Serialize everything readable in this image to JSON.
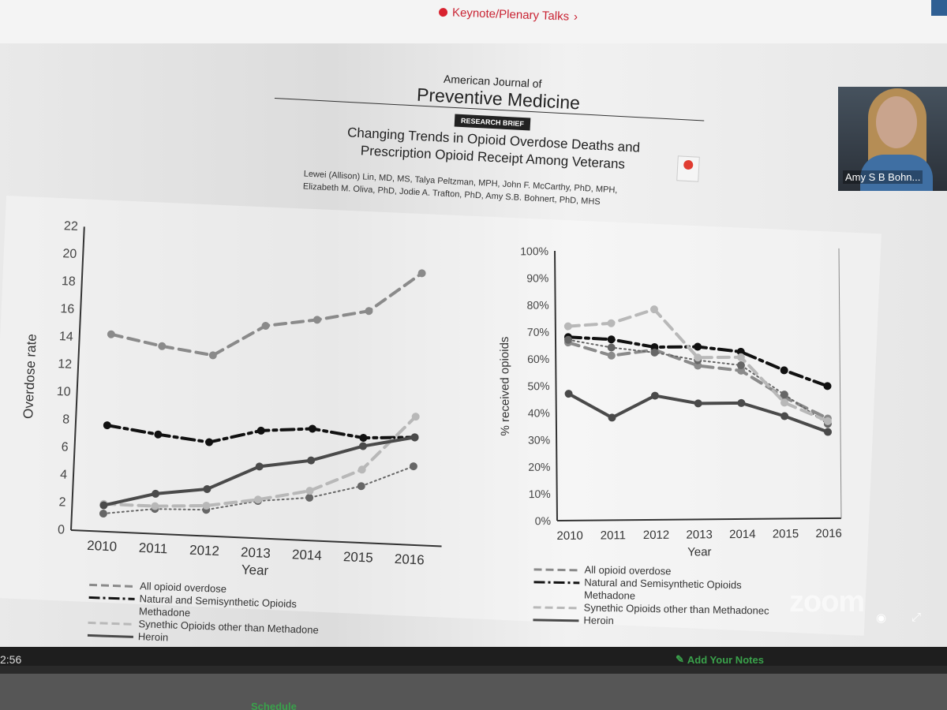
{
  "banner": {
    "keynote_link": "Keynote/Plenary Talks",
    "chevron": "›"
  },
  "journal": {
    "line1": "American Journal of",
    "line2": "Preventive Medicine",
    "badge": "RESEARCH BRIEF"
  },
  "paper": {
    "title_line1": "Changing Trends in Opioid Overdose Deaths and",
    "title_line2": "Prescription Opioid Receipt Among Veterans",
    "authors_line1": "Lewei (Allison) Lin, MD, MS, Talya Peltzman, MPH, John F. McCarthy, PhD, MPH,",
    "authors_line2": "Elizabeth M. Oliva, PhD, Jodie A. Trafton, PhD, Amy S.B. Bohnert, PhD, MHS"
  },
  "legend_left": {
    "all": "All opioid overdose",
    "natural": "Natural and Semisynthetic Opioids",
    "methadone": "Methadone",
    "synthetic": "Synethic Opioids other than Methadone",
    "heroin": "Heroin"
  },
  "legend_right": {
    "all": "All opioid overdose",
    "natural": "Natural and Semisynthetic Opioids",
    "methadone": "Methadone",
    "synthetic": "Synethic Opioids other than Methadonec",
    "heroin": "Heroin"
  },
  "webcam": {
    "name": "Amy S B Bohn..."
  },
  "zoom_watermark": "zoom",
  "timestamp": "2:56",
  "notes": {
    "label": "Add Your Notes",
    "icon": "pencil-note-icon"
  },
  "schedule": {
    "label": "Schedule"
  },
  "colors": {
    "accent_red": "#c92333",
    "notes_green": "#3aa14b",
    "zoom_blue": "#2f5f93"
  },
  "chart_data": [
    {
      "type": "line",
      "title": "",
      "xlabel": "Year",
      "ylabel": "Overdose rate",
      "x": [
        "2010",
        "2011",
        "2012",
        "2013",
        "2014",
        "2015",
        "2016"
      ],
      "ylim": [
        0,
        22
      ],
      "yticks": [
        "0",
        "2",
        "4",
        "6",
        "8",
        "10",
        "12",
        "14",
        "16",
        "18",
        "20",
        "22"
      ],
      "series": [
        {
          "name": "All opioid overdose",
          "values": [
            14.3,
            13.6,
            13.1,
            15.4,
            16.0,
            16.8,
            19.7
          ],
          "color": "#8a8a8a",
          "style": "dash"
        },
        {
          "name": "Natural and Semisynthetic Opioids",
          "values": [
            7.7,
            7.2,
            6.8,
            7.8,
            8.1,
            7.6,
            7.8
          ],
          "color": "#111111",
          "style": "dashdot"
        },
        {
          "name": "Methadone",
          "values": [
            1.3,
            1.8,
            1.9,
            2.7,
            3.1,
            4.1,
            5.7
          ],
          "color": "#666666",
          "style": "dot"
        },
        {
          "name": "Synethic Opioids other than Methadone",
          "values": [
            2.0,
            2.0,
            2.2,
            2.8,
            3.6,
            5.3,
            9.3
          ],
          "color": "#b8b8b8",
          "style": "dash"
        },
        {
          "name": "Heroin",
          "values": [
            1.9,
            2.9,
            3.4,
            5.2,
            5.8,
            7.0,
            7.8
          ],
          "color": "#4a4a4a",
          "style": "solid"
        }
      ]
    },
    {
      "type": "line",
      "title": "",
      "xlabel": "Year",
      "ylabel": "% received opioids",
      "x": [
        "2010",
        "2011",
        "2012",
        "2013",
        "2014",
        "2015",
        "2016"
      ],
      "ylim": [
        0,
        100
      ],
      "yticks": [
        "0%",
        "10%",
        "20%",
        "30%",
        "40%",
        "50%",
        "60%",
        "70%",
        "80%",
        "90%",
        "100%"
      ],
      "series": [
        {
          "name": "All opioid overdose",
          "values": [
            66,
            61,
            63,
            57,
            55,
            45,
            37
          ],
          "color": "#8a8a8a",
          "style": "dash"
        },
        {
          "name": "Natural and Semisynthetic Opioids",
          "values": [
            68,
            67,
            64,
            64,
            62,
            55,
            49
          ],
          "color": "#111111",
          "style": "dashdot"
        },
        {
          "name": "Methadone",
          "values": [
            67,
            64,
            62,
            59,
            57,
            46,
            35
          ],
          "color": "#666666",
          "style": "dot"
        },
        {
          "name": "Synethic Opioids other than Methadonec",
          "values": [
            72,
            73,
            78,
            60,
            60,
            43,
            36
          ],
          "color": "#b8b8b8",
          "style": "dash"
        },
        {
          "name": "Heroin",
          "values": [
            47,
            38,
            46,
            43,
            43,
            38,
            32
          ],
          "color": "#4a4a4a",
          "style": "solid"
        }
      ]
    }
  ]
}
